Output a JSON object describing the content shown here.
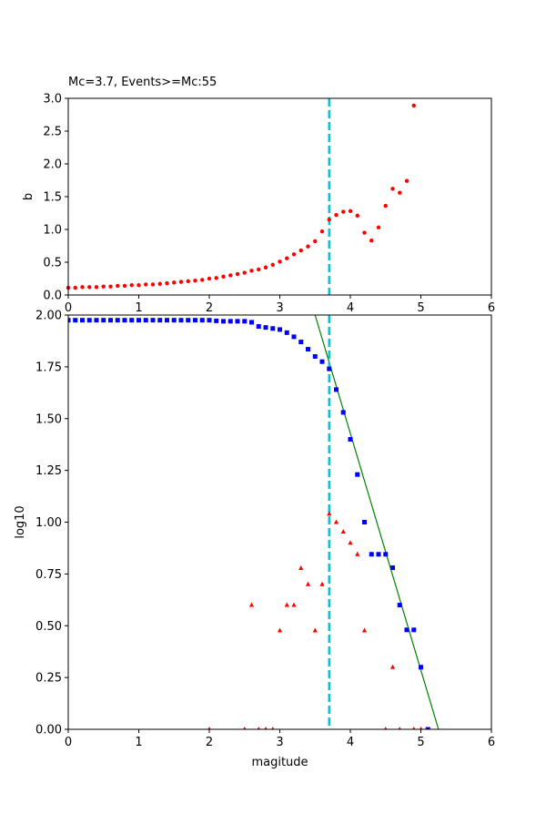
{
  "figure": {
    "colors": {
      "b_points": "#ff0000",
      "cumulative": "#0000ff",
      "noncumulative": "#ff0000",
      "fit_line": "#008000",
      "mc_line": "#17becf",
      "axes": "#000000"
    }
  },
  "chart_data": [
    {
      "type": "scatter",
      "title": "Mc=3.7, Events>=Mc:55",
      "xlabel": "",
      "ylabel": "b",
      "xlim": [
        0,
        6
      ],
      "ylim": [
        0,
        3
      ],
      "xticks": [
        "0",
        "1",
        "2",
        "3",
        "4",
        "5",
        "6"
      ],
      "yticks": [
        "0.0",
        "0.5",
        "1.0",
        "1.5",
        "2.0",
        "2.5",
        "3.0"
      ],
      "grid": false,
      "mc": 3.7,
      "series": [
        {
          "marker": "circle",
          "color": "#ff0000",
          "x": [
            0.0,
            0.1,
            0.2,
            0.3,
            0.4,
            0.5,
            0.6,
            0.7,
            0.8,
            0.9,
            1.0,
            1.1,
            1.2,
            1.3,
            1.4,
            1.5,
            1.6,
            1.7,
            1.8,
            1.9,
            2.0,
            2.1,
            2.2,
            2.3,
            2.4,
            2.5,
            2.6,
            2.7,
            2.8,
            2.9,
            3.0,
            3.1,
            3.2,
            3.3,
            3.4,
            3.5,
            3.6,
            3.7,
            3.8,
            3.9,
            4.0,
            4.1,
            4.2,
            4.3,
            4.4,
            4.5,
            4.6,
            4.7,
            4.8,
            4.9
          ],
          "y": [
            0.11,
            0.11,
            0.12,
            0.12,
            0.12,
            0.13,
            0.13,
            0.14,
            0.14,
            0.15,
            0.15,
            0.16,
            0.16,
            0.17,
            0.18,
            0.19,
            0.2,
            0.21,
            0.22,
            0.23,
            0.25,
            0.26,
            0.28,
            0.3,
            0.32,
            0.34,
            0.37,
            0.39,
            0.42,
            0.46,
            0.51,
            0.56,
            0.62,
            0.68,
            0.74,
            0.82,
            0.97,
            1.15,
            1.22,
            1.27,
            1.28,
            1.21,
            0.95,
            0.83,
            1.03,
            1.36,
            1.62,
            1.56,
            1.74,
            2.89
          ]
        }
      ]
    },
    {
      "type": "scatter",
      "title": "",
      "xlabel": "magitude",
      "ylabel": "log10",
      "xlim": [
        0,
        6
      ],
      "ylim": [
        0,
        2
      ],
      "xticks": [
        "0",
        "1",
        "2",
        "3",
        "4",
        "5",
        "6"
      ],
      "yticks": [
        "0.00",
        "0.25",
        "0.50",
        "0.75",
        "1.00",
        "1.25",
        "1.50",
        "1.75",
        "2.00"
      ],
      "grid": false,
      "mc": 3.7,
      "fit_line": {
        "x": [
          3.5,
          5.25
        ],
        "y": [
          2.0,
          0.0
        ],
        "color": "#008000"
      },
      "series": [
        {
          "marker": "square",
          "color": "#0000ff",
          "x": [
            0.0,
            0.1,
            0.2,
            0.3,
            0.4,
            0.5,
            0.6,
            0.7,
            0.8,
            0.9,
            1.0,
            1.1,
            1.2,
            1.3,
            1.4,
            1.5,
            1.6,
            1.7,
            1.8,
            1.9,
            2.0,
            2.1,
            2.2,
            2.3,
            2.4,
            2.5,
            2.6,
            2.7,
            2.8,
            2.9,
            3.0,
            3.1,
            3.2,
            3.3,
            3.4,
            3.5,
            3.6,
            3.7,
            3.8,
            3.9,
            4.0,
            4.1,
            4.2,
            4.3,
            4.4,
            4.5,
            4.6,
            4.7,
            4.8,
            4.9,
            5.0,
            5.1
          ],
          "y": [
            1.975,
            1.975,
            1.975,
            1.975,
            1.975,
            1.975,
            1.975,
            1.975,
            1.975,
            1.975,
            1.975,
            1.975,
            1.975,
            1.975,
            1.975,
            1.975,
            1.975,
            1.975,
            1.975,
            1.975,
            1.975,
            1.972,
            1.97,
            1.97,
            1.97,
            1.97,
            1.965,
            1.945,
            1.94,
            1.935,
            1.93,
            1.915,
            1.895,
            1.87,
            1.835,
            1.8,
            1.775,
            1.74,
            1.64,
            1.53,
            1.4,
            1.23,
            1.0,
            0.845,
            0.845,
            0.845,
            0.78,
            0.6,
            0.48,
            0.48,
            0.3,
            0.0
          ]
        },
        {
          "marker": "triangle",
          "color": "#ff0000",
          "x": [
            2.0,
            2.5,
            2.6,
            2.7,
            2.8,
            2.9,
            3.0,
            3.1,
            3.2,
            3.3,
            3.4,
            3.5,
            3.6,
            3.7,
            3.8,
            3.9,
            4.0,
            4.1,
            4.2,
            4.5,
            4.6,
            4.7,
            4.9,
            5.0
          ],
          "y": [
            0.0,
            0.0,
            0.6,
            0.0,
            0.0,
            0.0,
            0.477,
            0.6,
            0.6,
            0.778,
            0.7,
            0.477,
            0.7,
            1.04,
            1.0,
            0.954,
            0.9,
            0.845,
            0.477,
            0.0,
            0.3,
            0.0,
            0.0,
            0.0
          ]
        }
      ]
    }
  ]
}
